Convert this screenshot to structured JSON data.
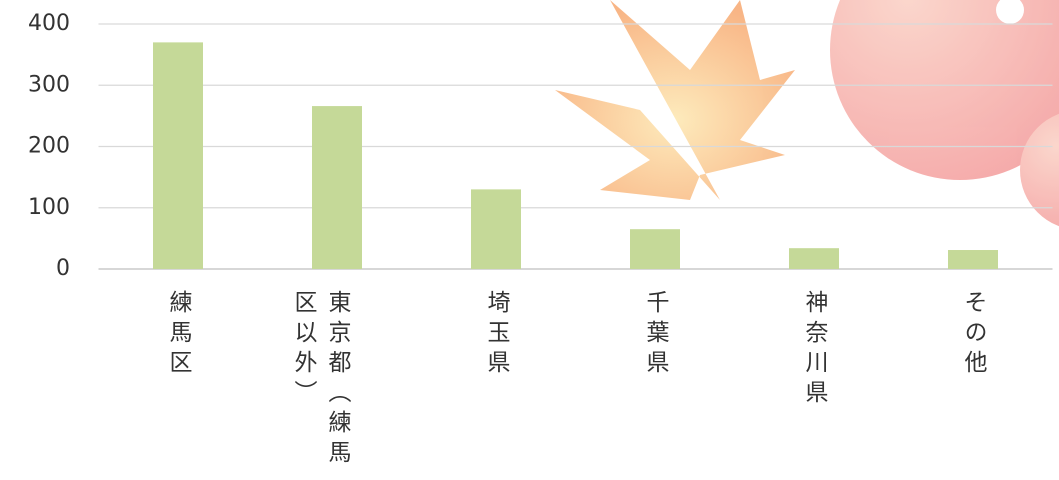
{
  "chart_data": {
    "type": "bar",
    "categories": [
      "練馬区",
      "東京都（練馬区以外）",
      "埼玉県",
      "千葉県",
      "神奈川県",
      "その他"
    ],
    "values": [
      370,
      266,
      130,
      65,
      34,
      31
    ],
    "color": "#c5d998",
    "ylim": [
      0,
      400
    ],
    "yticks": [
      0,
      100,
      200,
      300,
      400
    ],
    "grid": true
  }
}
